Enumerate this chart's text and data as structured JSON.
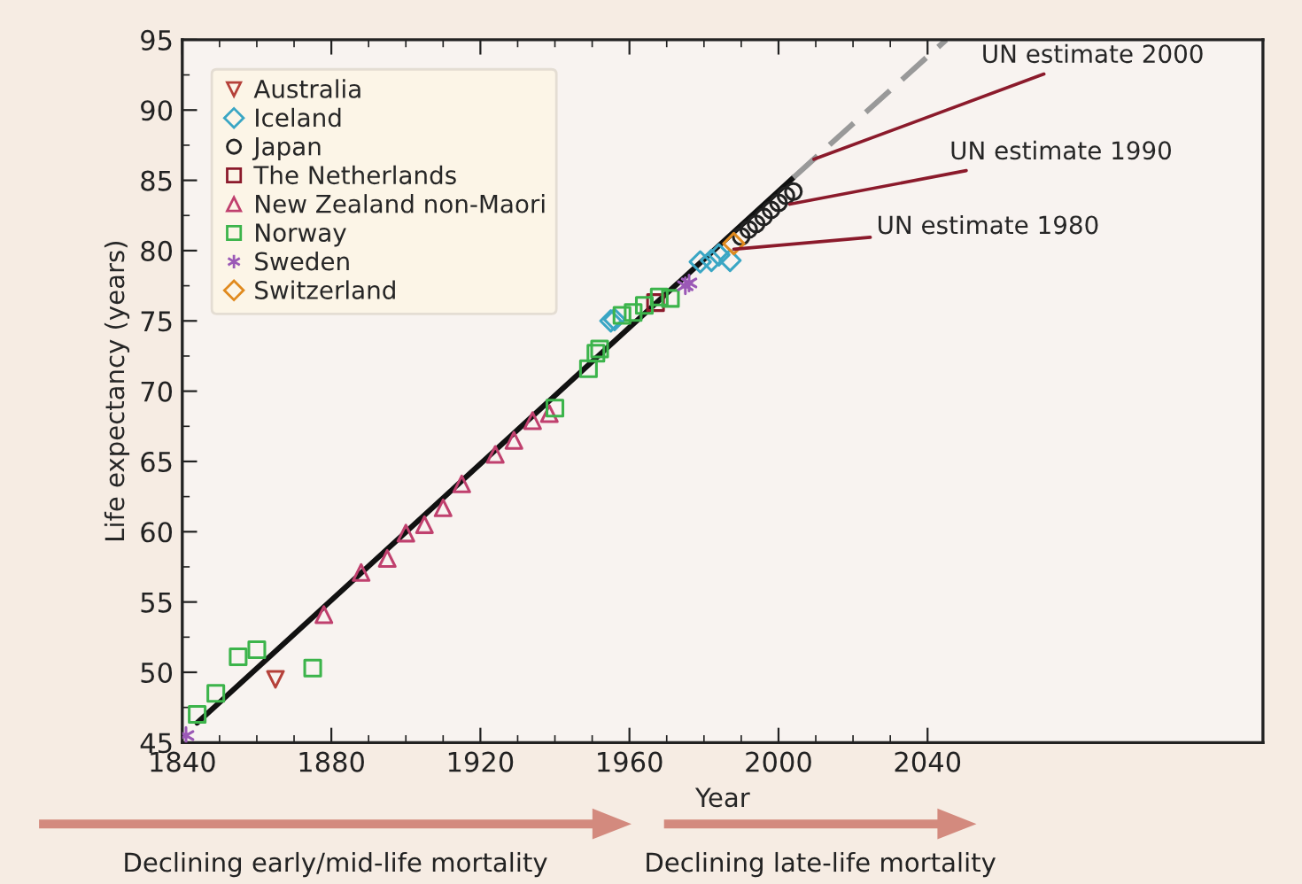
{
  "chart_data": {
    "type": "scatter",
    "xlabel": "Year",
    "ylabel": "Life expectancy (years)",
    "xlim": [
      1840,
      2130
    ],
    "ylim": [
      45,
      95
    ],
    "xticks": [
      1840,
      {
        "value": 1850,
        "label": null
      },
      {
        "value": 1860,
        "label": null
      },
      {
        "value": 1870,
        "label": null
      },
      1880,
      {
        "value": 1890,
        "label": null
      },
      {
        "value": 1900,
        "label": null
      },
      {
        "value": 1910,
        "label": null
      },
      1920,
      {
        "value": 1930,
        "label": null
      },
      {
        "value": 1940,
        "label": null
      },
      {
        "value": 1950,
        "label": null
      },
      1960,
      {
        "value": 1970,
        "label": null
      },
      {
        "value": 1980,
        "label": null
      },
      {
        "value": 1990,
        "label": null
      },
      2000,
      {
        "value": 2010,
        "label": null
      },
      {
        "value": 2020,
        "label": null
      },
      {
        "value": 2030,
        "label": null
      },
      2040
    ],
    "yticks": [
      45,
      {
        "value": 47.5,
        "label": null
      },
      50,
      {
        "value": 52.5,
        "label": null
      },
      55,
      {
        "value": 57.5,
        "label": null
      },
      60,
      {
        "value": 62.5,
        "label": null
      },
      65,
      {
        "value": 67.5,
        "label": null
      },
      70,
      {
        "value": 72.5,
        "label": null
      },
      75,
      {
        "value": 77.5,
        "label": null
      },
      80,
      {
        "value": 82.5,
        "label": null
      },
      85,
      {
        "value": 87.5,
        "label": null
      },
      90,
      {
        "value": 92.5,
        "label": null
      },
      95
    ],
    "grid": false,
    "legend": "top left",
    "series": [
      {
        "type": "line",
        "color": "#111111",
        "line_style": "solid",
        "marker": "none",
        "x": [
          1844,
          2004
        ],
        "values": [
          46.4,
          85.2
        ]
      },
      {
        "type": "line",
        "color": "#999999",
        "line_style": "dashed",
        "marker": "none",
        "x": [
          2004,
          2045
        ],
        "values": [
          85.2,
          95.0
        ]
      },
      {
        "name": "Australia",
        "color": "#b5413a",
        "marker": "triangle_down",
        "x": [
          1865
        ],
        "values": [
          49.5
        ]
      },
      {
        "name": "Iceland",
        "color": "#3aa6c4",
        "marker": "diamond",
        "x": [
          1955,
          1956,
          1979,
          1982,
          1984,
          1987
        ],
        "values": [
          75.0,
          75.1,
          79.2,
          79.3,
          79.7,
          79.3
        ]
      },
      {
        "name": "Japan",
        "color": "#222222",
        "marker": "circle",
        "x": [
          1990,
          1992,
          1994,
          1996,
          1998,
          2000,
          2002,
          2004
        ],
        "values": [
          81.0,
          81.5,
          81.9,
          82.4,
          82.9,
          83.4,
          83.9,
          84.2
        ]
      },
      {
        "name": "The Netherlands",
        "color": "#8b1a2b",
        "marker": "square",
        "x": [
          1967
        ],
        "values": [
          76.3
        ]
      },
      {
        "name": "New Zealand non-Maori",
        "color": "#c0406e",
        "marker": "triangle",
        "x": [
          1878,
          1888,
          1895,
          1900,
          1905,
          1910,
          1915,
          1924,
          1929,
          1934,
          1938.5
        ],
        "values": [
          54.1,
          57.1,
          58.1,
          59.9,
          60.5,
          61.7,
          63.4,
          65.5,
          66.5,
          67.9,
          68.4
        ]
      },
      {
        "name": "Norway",
        "color": "#3cb44b",
        "marker": "square",
        "x": [
          1844,
          1849,
          1855,
          1860,
          1875,
          1940,
          1949,
          1951,
          1952,
          1958,
          1961,
          1964,
          1968,
          1971
        ],
        "values": [
          47.0,
          48.5,
          51.1,
          51.6,
          50.3,
          68.8,
          71.6,
          72.7,
          73.0,
          75.4,
          75.6,
          76.1,
          76.7,
          76.6
        ]
      },
      {
        "name": "Sweden",
        "color": "#9b59b6",
        "marker": "cross",
        "x": [
          1841,
          1975,
          1976
        ],
        "values": [
          45.5,
          77.5,
          77.7
        ]
      },
      {
        "name": "Switzerland",
        "color": "#e08a1e",
        "marker": "diamond",
        "x": [
          1988
        ],
        "values": [
          80.5
        ]
      }
    ],
    "annotations": [
      {
        "text": "UN estimate 1980",
        "x": 1988,
        "y": 80.1
      },
      {
        "text": "UN estimate 1990",
        "x": 2003,
        "y": 83.3
      },
      {
        "text": "UN estimate 2000",
        "x": 2009.5,
        "y": 86.5
      },
      "Declining early/mid-life mortality",
      "Declining late-life mortality"
    ]
  }
}
